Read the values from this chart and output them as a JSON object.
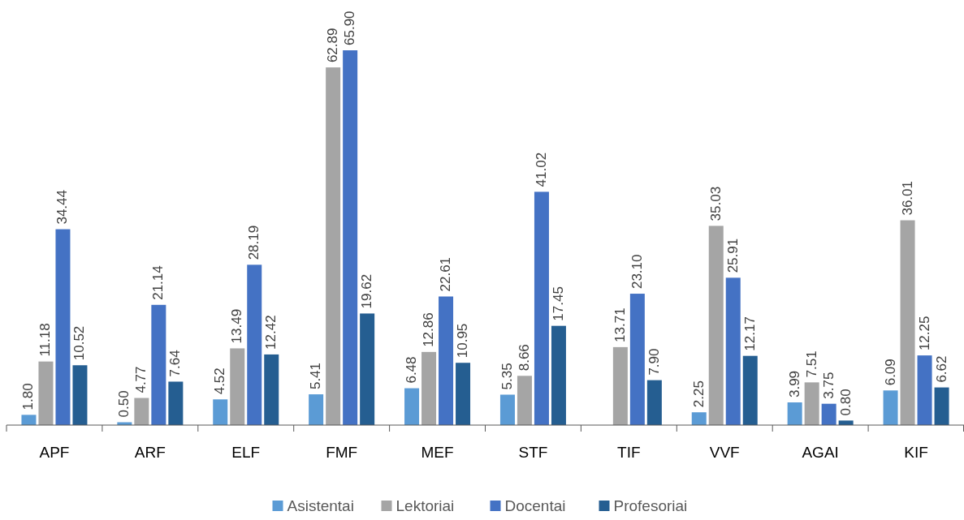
{
  "chart_data": {
    "type": "bar",
    "categories": [
      "APF",
      "ARF",
      "ELF",
      "FMF",
      "MEF",
      "STF",
      "TIF",
      "VVF",
      "AGAI",
      "KIF"
    ],
    "legend": "bottom",
    "series": [
      {
        "name": "Asistentai",
        "color": "#5b9bd5",
        "values": [
          1.8,
          0.5,
          4.52,
          5.41,
          6.48,
          5.35,
          null,
          2.25,
          3.99,
          6.09
        ],
        "value_labels": [
          "1.80",
          "0.50",
          "4.52",
          "5.41",
          "6.48",
          "5.35",
          null,
          "2.25",
          "3.99",
          "6.09"
        ]
      },
      {
        "name": "Lektoriai",
        "color": "#a5a5a5",
        "values": [
          11.18,
          4.77,
          13.49,
          62.89,
          12.86,
          8.66,
          13.71,
          35.03,
          7.51,
          36.01
        ],
        "value_labels": [
          "11.18",
          "4.77",
          "13.49",
          "62.89",
          "12.86",
          "8.66",
          "13.71",
          "35.03",
          "7.51",
          "36.01"
        ]
      },
      {
        "name": "Docentai",
        "color": "#4472c4",
        "values": [
          34.44,
          21.14,
          28.19,
          65.9,
          22.61,
          41.02,
          23.1,
          25.91,
          3.75,
          12.25
        ],
        "value_labels": [
          "34.44",
          "21.14",
          "28.19",
          "65.90",
          "22.61",
          "41.02",
          "23.10",
          "25.91",
          "3.75",
          "12.25"
        ]
      },
      {
        "name": "Profesoriai",
        "color": "#255e91",
        "values": [
          10.52,
          7.64,
          12.42,
          19.62,
          10.95,
          17.45,
          7.9,
          12.17,
          0.8,
          6.62
        ],
        "value_labels": [
          "10.52",
          "7.64",
          "12.42",
          "19.62",
          "10.95",
          "17.45",
          "7.90",
          "12.17",
          "0.80",
          "6.62"
        ]
      }
    ]
  }
}
